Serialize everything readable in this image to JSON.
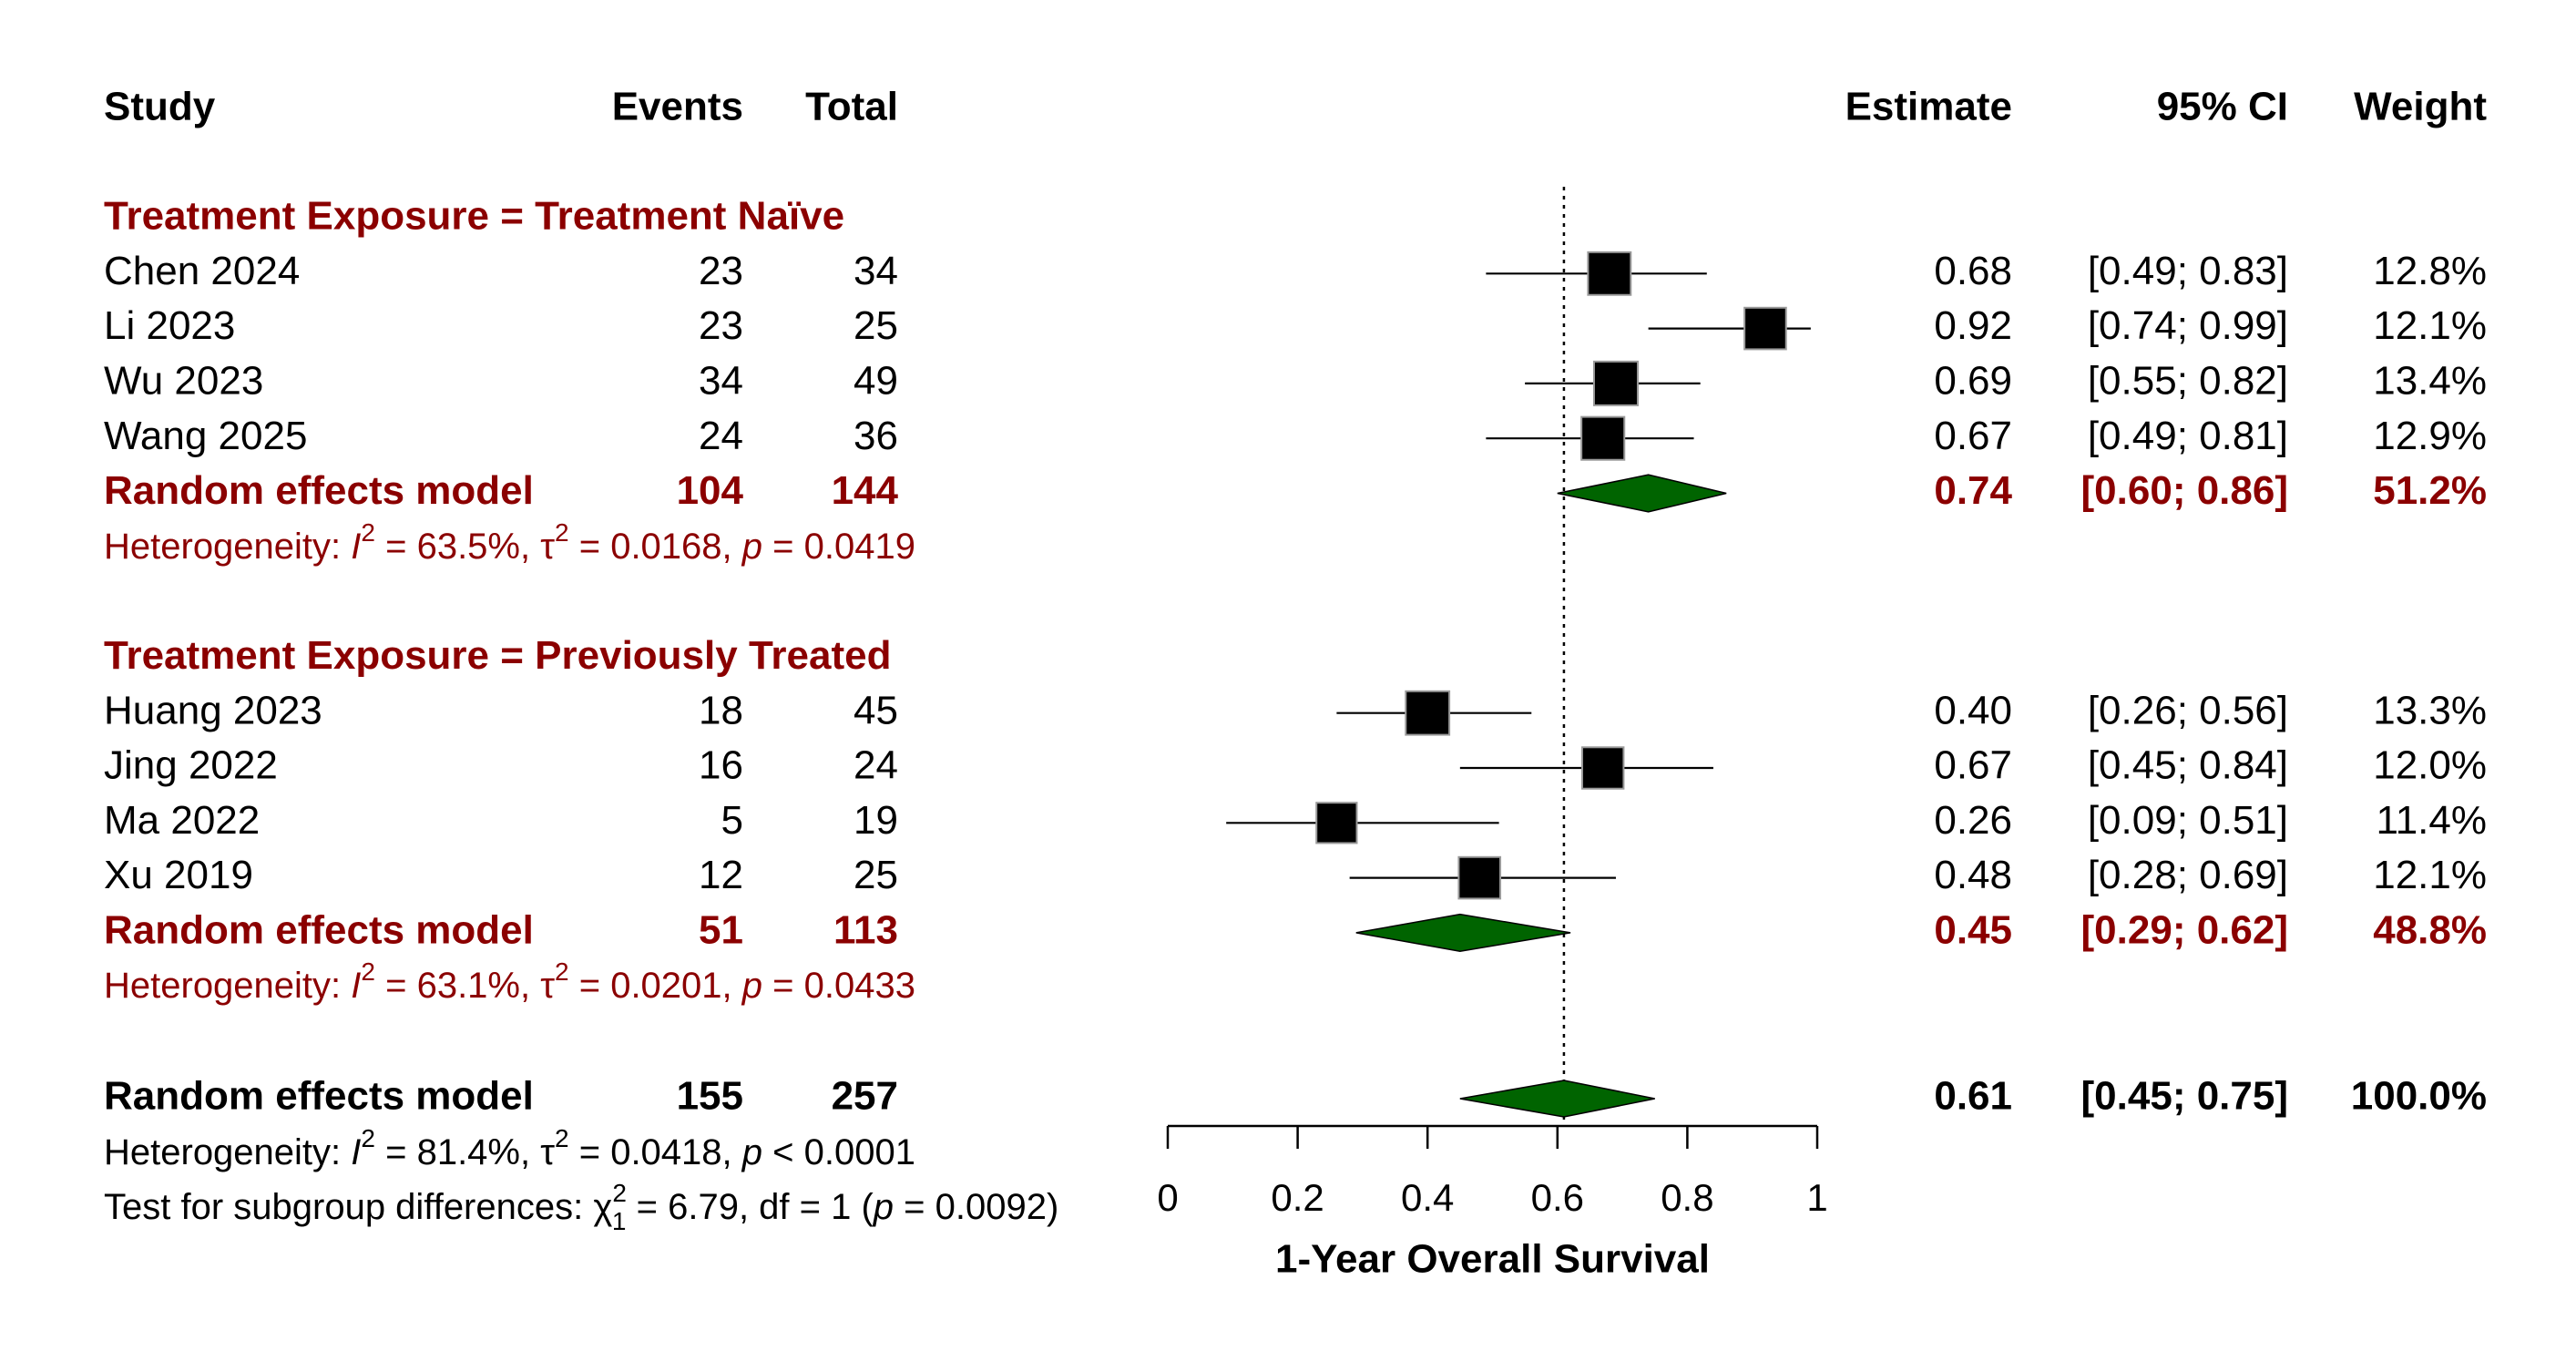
{
  "chart_data": {
    "type": "forest",
    "xlabel": "1-Year Overall Survival",
    "xlim": [
      0,
      1
    ],
    "xticks": [
      "0",
      "0.2",
      "0.4",
      "0.6",
      "0.8",
      "1"
    ],
    "reference_line": 0.61,
    "headers": {
      "study": "Study",
      "events": "Events",
      "total": "Total",
      "estimate": "Estimate",
      "ci": "95% CI",
      "weight": "Weight"
    },
    "colors": {
      "subgroup_text": "#8B0000",
      "diamond": "#006400",
      "square": "#000000"
    },
    "groups": [
      {
        "title": "Treatment Exposure = Treatment Naïve",
        "studies": [
          {
            "name": "Chen 2024",
            "events": "23",
            "total": "34",
            "est": 0.68,
            "lo": 0.49,
            "hi": 0.83,
            "est_label": "0.68",
            "ci_label": "[0.49; 0.83]",
            "weight": "12.8%",
            "w": 12.8
          },
          {
            "name": "Li 2023",
            "events": "23",
            "total": "25",
            "est": 0.92,
            "lo": 0.74,
            "hi": 0.99,
            "est_label": "0.92",
            "ci_label": "[0.74; 0.99]",
            "weight": "12.1%",
            "w": 12.1
          },
          {
            "name": "Wu 2023",
            "events": "34",
            "total": "49",
            "est": 0.69,
            "lo": 0.55,
            "hi": 0.82,
            "est_label": "0.69",
            "ci_label": "[0.55; 0.82]",
            "weight": "13.4%",
            "w": 13.4
          },
          {
            "name": "Wang 2025",
            "events": "24",
            "total": "36",
            "est": 0.67,
            "lo": 0.49,
            "hi": 0.81,
            "est_label": "0.67",
            "ci_label": "[0.49; 0.81]",
            "weight": "12.9%",
            "w": 12.9
          }
        ],
        "model": {
          "label": "Random effects model",
          "events": "104",
          "total": "144",
          "est": 0.74,
          "lo": 0.6,
          "hi": 0.86,
          "est_label": "0.74",
          "ci_label": "[0.60; 0.86]",
          "weight": "51.2%"
        },
        "heterogeneity": {
          "prefix": "Heterogeneity: ",
          "i2_sym": "I",
          "i2_val": " = 63.5%, ",
          "tau_sym": "τ",
          "tau_val": " = 0.0168, ",
          "p_sym": "p",
          "p_val": " = 0.0419"
        }
      },
      {
        "title": "Treatment Exposure = Previously Treated",
        "studies": [
          {
            "name": "Huang 2023",
            "events": "18",
            "total": "45",
            "est": 0.4,
            "lo": 0.26,
            "hi": 0.56,
            "est_label": "0.40",
            "ci_label": "[0.26; 0.56]",
            "weight": "13.3%",
            "w": 13.3
          },
          {
            "name": "Jing 2022",
            "events": "16",
            "total": "24",
            "est": 0.67,
            "lo": 0.45,
            "hi": 0.84,
            "est_label": "0.67",
            "ci_label": "[0.45; 0.84]",
            "weight": "12.0%",
            "w": 12.0
          },
          {
            "name": "Ma 2022",
            "events": "5",
            "total": "19",
            "est": 0.26,
            "lo": 0.09,
            "hi": 0.51,
            "est_label": "0.26",
            "ci_label": "[0.09; 0.51]",
            "weight": "11.4%",
            "w": 11.4
          },
          {
            "name": "Xu 2019",
            "events": "12",
            "total": "25",
            "est": 0.48,
            "lo": 0.28,
            "hi": 0.69,
            "est_label": "0.48",
            "ci_label": "[0.28; 0.69]",
            "weight": "12.1%",
            "w": 12.1
          }
        ],
        "model": {
          "label": "Random effects model",
          "events": "51",
          "total": "113",
          "est": 0.45,
          "lo": 0.29,
          "hi": 0.62,
          "est_label": "0.45",
          "ci_label": "[0.29; 0.62]",
          "weight": "48.8%"
        },
        "heterogeneity": {
          "prefix": "Heterogeneity: ",
          "i2_sym": "I",
          "i2_val": " = 63.1%, ",
          "tau_sym": "τ",
          "tau_val": " = 0.0201, ",
          "p_sym": "p",
          "p_val": " = 0.0433"
        }
      }
    ],
    "overall": {
      "label": "Random effects model",
      "events": "155",
      "total": "257",
      "est": 0.61,
      "lo": 0.45,
      "hi": 0.75,
      "est_label": "0.61",
      "ci_label": "[0.45; 0.75]",
      "weight": "100.0%",
      "heterogeneity": {
        "prefix": "Heterogeneity: ",
        "i2_sym": "I",
        "i2_val": " = 81.4%, ",
        "tau_sym": "τ",
        "tau_val": " = 0.0418, ",
        "p_sym": "p",
        "p_val": " < 0.0001"
      },
      "subgroup_test": {
        "prefix": "Test for subgroup differences: ",
        "chi_sym": "χ",
        "chi_sup": "2",
        "chi_sub": "1",
        "chi_val": " = 6.79, df = 1 (",
        "p_sym": "p",
        "p_val": " = 0.0092)"
      }
    }
  }
}
